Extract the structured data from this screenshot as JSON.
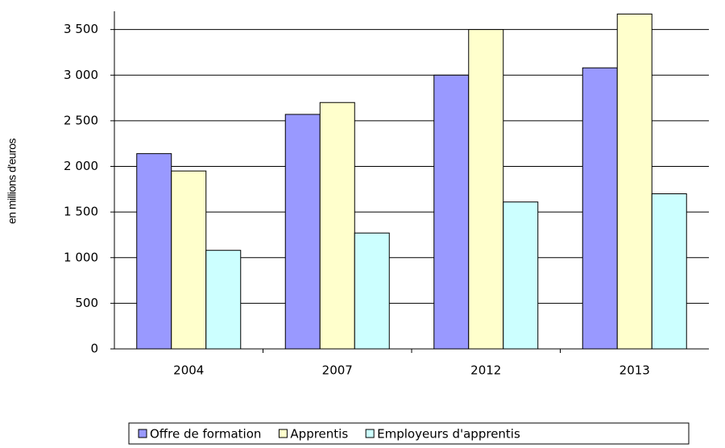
{
  "chart_data": {
    "type": "bar",
    "y_label": "en millions d'euros",
    "categories": [
      "2004",
      "2007",
      "2012",
      "2013"
    ],
    "series": [
      {
        "name": "Offre de formation",
        "color": "#9999ff",
        "values": [
          2140,
          2570,
          3000,
          3080
        ]
      },
      {
        "name": "Apprentis",
        "color": "#ffffcc",
        "values": [
          1950,
          2700,
          3500,
          3670
        ]
      },
      {
        "name": "Employeurs d'apprentis",
        "color": "#ccffff",
        "values": [
          1080,
          1270,
          1610,
          1700
        ]
      }
    ],
    "ylim": [
      0,
      3700
    ],
    "yticks": [
      0,
      500,
      {
        "value": 1000,
        "label": "1 000"
      },
      {
        "value": 1500,
        "label": "1 500"
      },
      {
        "value": 2000,
        "label": "2 000"
      },
      {
        "value": 2500,
        "label": "2 500"
      },
      {
        "value": 3000,
        "label": "3 000"
      },
      {
        "value": 3500,
        "label": "3 500"
      }
    ],
    "grid": true,
    "legend": "bottom"
  }
}
